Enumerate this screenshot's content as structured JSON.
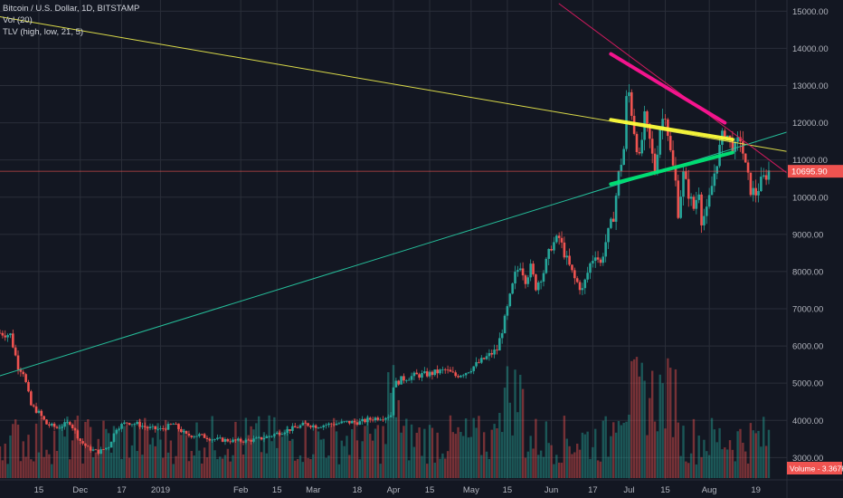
{
  "header": {
    "symbol_line": "Bitcoin / U.S. Dollar, 1D, BITSTAMP",
    "vol_line": "Vol (20)",
    "tlv_line": "TLV (high, low, 21, 5)"
  },
  "price_badge": "10695.90",
  "volume_badge": "Volume - 3.367K",
  "colors": {
    "background": "#131722",
    "grid": "#2a2e39",
    "up": "#26a69a",
    "down": "#ef5350",
    "yellow_line": "#ffff3b",
    "green_line": "#00e676",
    "magenta_line": "#ff1493",
    "badge": "#ef5350"
  },
  "chart_data": {
    "type": "candlestick",
    "y_tick_labels": [
      "15000.00",
      "14000.00",
      "13000.00",
      "12000.00",
      "11000.00",
      "10000.00",
      "9000.00",
      "8000.00",
      "7000.00",
      "6000.00",
      "5000.00",
      "4000.00",
      "3000.00"
    ],
    "y_ticks": [
      15000,
      14000,
      13000,
      12000,
      11000,
      10000,
      9000,
      8000,
      7000,
      6000,
      5000,
      4000,
      3000
    ],
    "ylim": [
      2400,
      15300
    ],
    "x_tick_labels": [
      "15",
      "Dec",
      "17",
      "2019",
      "Feb",
      "15",
      "Mar",
      "18",
      "Apr",
      "15",
      "May",
      "15",
      "Jun",
      "17",
      "Jul",
      "15",
      "Aug",
      "19"
    ],
    "x_tick_days": [
      -47,
      -31,
      -15,
      0,
      31,
      45,
      59,
      76,
      90,
      104,
      120,
      134,
      151,
      167,
      181,
      195,
      212,
      230
    ],
    "xlim_days": [
      -62,
      242
    ],
    "last_price": 10695.9,
    "trendlines": [
      {
        "name": "long-yellow",
        "points": [
          [
            -62,
            14850
          ],
          [
            242,
            11230
          ]
        ]
      },
      {
        "name": "long-green",
        "points": [
          [
            -62,
            5200
          ],
          [
            242,
            11750
          ]
        ]
      },
      {
        "name": "long-magenta-thin",
        "points": [
          [
            154,
            15200
          ],
          [
            242,
            10650
          ]
        ]
      },
      {
        "name": "yellow-thick",
        "points": [
          [
            174,
            12080
          ],
          [
            221,
            11550
          ]
        ]
      },
      {
        "name": "green-thick",
        "points": [
          [
            174,
            10350
          ],
          [
            221,
            11200
          ]
        ]
      },
      {
        "name": "magenta-thick",
        "points": [
          [
            174,
            13850
          ],
          [
            218,
            12000
          ]
        ]
      }
    ],
    "anchors": [
      [
        -62,
        6350
      ],
      [
        -58,
        6300
      ],
      [
        -55,
        5450
      ],
      [
        -53,
        5300
      ],
      [
        -50,
        4400
      ],
      [
        -47,
        4200
      ],
      [
        -44,
        3900
      ],
      [
        -40,
        3800
      ],
      [
        -35,
        3950
      ],
      [
        -31,
        3450
      ],
      [
        -28,
        3250
      ],
      [
        -24,
        3150
      ],
      [
        -20,
        3300
      ],
      [
        -17,
        3800
      ],
      [
        -13,
        3950
      ],
      [
        -9,
        3900
      ],
      [
        -5,
        3800
      ],
      [
        0,
        3750
      ],
      [
        5,
        3900
      ],
      [
        10,
        3600
      ],
      [
        15,
        3600
      ],
      [
        20,
        3500
      ],
      [
        28,
        3450
      ],
      [
        33,
        3450
      ],
      [
        38,
        3500
      ],
      [
        43,
        3600
      ],
      [
        47,
        3700
      ],
      [
        52,
        3800
      ],
      [
        56,
        3900
      ],
      [
        60,
        3850
      ],
      [
        66,
        3900
      ],
      [
        72,
        3950
      ],
      [
        77,
        3950
      ],
      [
        82,
        4050
      ],
      [
        87,
        4100
      ],
      [
        89,
        4150
      ],
      [
        90,
        4950
      ],
      [
        93,
        5100
      ],
      [
        98,
        5200
      ],
      [
        104,
        5250
      ],
      [
        110,
        5350
      ],
      [
        114,
        5200
      ],
      [
        118,
        5300
      ],
      [
        122,
        5500
      ],
      [
        126,
        5700
      ],
      [
        130,
        5900
      ],
      [
        133,
        6700
      ],
      [
        135,
        7300
      ],
      [
        137,
        7900
      ],
      [
        139,
        8200
      ],
      [
        141,
        7800
      ],
      [
        143,
        8100
      ],
      [
        145,
        7600
      ],
      [
        148,
        8000
      ],
      [
        151,
        8700
      ],
      [
        154,
        8900
      ],
      [
        157,
        8300
      ],
      [
        160,
        7800
      ],
      [
        163,
        7500
      ],
      [
        166,
        8200
      ],
      [
        168,
        8500
      ],
      [
        170,
        8200
      ],
      [
        172,
        8800
      ],
      [
        175,
        9500
      ],
      [
        177,
        10600
      ],
      [
        179,
        11300
      ],
      [
        180,
        12600
      ],
      [
        181,
        12800
      ],
      [
        183,
        11800
      ],
      [
        185,
        11000
      ],
      [
        187,
        12100
      ],
      [
        189,
        11500
      ],
      [
        191,
        10700
      ],
      [
        193,
        11900
      ],
      [
        195,
        12300
      ],
      [
        197,
        11200
      ],
      [
        199,
        10400
      ],
      [
        200,
        9600
      ],
      [
        202,
        10600
      ],
      [
        204,
        10100
      ],
      [
        206,
        9700
      ],
      [
        208,
        10200
      ],
      [
        209,
        9400
      ],
      [
        211,
        9600
      ],
      [
        213,
        10300
      ],
      [
        215,
        11000
      ],
      [
        217,
        11600
      ],
      [
        218,
        11800
      ],
      [
        220,
        11500
      ],
      [
        222,
        11300
      ],
      [
        224,
        11600
      ],
      [
        226,
        10800
      ],
      [
        228,
        10200
      ],
      [
        230,
        10100
      ],
      [
        232,
        10400
      ],
      [
        235,
        10700
      ]
    ]
  }
}
